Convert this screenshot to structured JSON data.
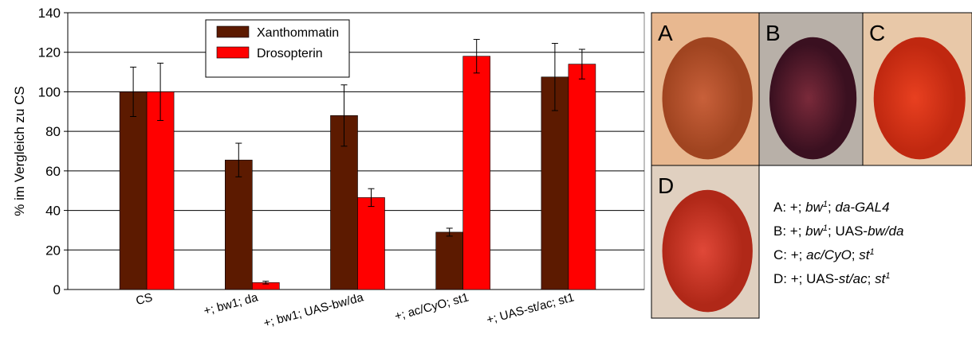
{
  "chart_data": {
    "type": "bar",
    "y_label": "% im Vergleich zu CS",
    "categories": [
      "CS",
      "+; bw1; da",
      "+; bw1; UAS-bw/da",
      "+; ac/CyO; st1",
      "+; UAS-st/ac; st1"
    ],
    "series": [
      {
        "name": "Xanthommatin",
        "color": "#5c1a00",
        "values": [
          100,
          65.5,
          88,
          29,
          107.5
        ],
        "errors": [
          12.5,
          8.5,
          15.5,
          2,
          17
        ]
      },
      {
        "name": "Drosopterin",
        "color": "#ff0000",
        "values": [
          100,
          3.5,
          46.5,
          118,
          114
        ],
        "errors": [
          14.5,
          0.7,
          4.5,
          8.5,
          7.5
        ]
      }
    ],
    "ylim": [
      0,
      140
    ],
    "yticks": [
      0,
      20,
      40,
      60,
      80,
      100,
      120,
      140
    ],
    "grid": true
  },
  "panels": [
    {
      "label": "A",
      "tone": [
        "#c8603a",
        "#a04420",
        "#e8b890"
      ],
      "caption": [
        {
          "text": "A: +; ",
          "style": "normal"
        },
        {
          "text": "bw",
          "style": "italic"
        },
        {
          "text": "1",
          "style": "sup"
        },
        {
          "text": "; ",
          "style": "normal"
        },
        {
          "text": "da-GAL4",
          "style": "italic"
        }
      ]
    },
    {
      "label": "B",
      "tone": [
        "#7a2a3a",
        "#3a1020",
        "#b8b0a8"
      ],
      "caption": [
        {
          "text": "B: +; ",
          "style": "normal"
        },
        {
          "text": "bw",
          "style": "italic"
        },
        {
          "text": "1",
          "style": "sup"
        },
        {
          "text": "; UAS-",
          "style": "normal"
        },
        {
          "text": "bw/da",
          "style": "italic"
        }
      ]
    },
    {
      "label": "C",
      "tone": [
        "#e84020",
        "#c02810",
        "#e8c8a8"
      ],
      "caption": [
        {
          "text": "C: +; ",
          "style": "normal"
        },
        {
          "text": "ac/CyO",
          "style": "italic"
        },
        {
          "text": "; ",
          "style": "normal"
        },
        {
          "text": "st",
          "style": "italic"
        },
        {
          "text": "1",
          "style": "sup"
        }
      ]
    },
    {
      "label": "D",
      "tone": [
        "#e04838",
        "#b02818",
        "#e0d0c0"
      ],
      "caption": [
        {
          "text": "D: +; UAS-",
          "style": "normal"
        },
        {
          "text": "st/ac",
          "style": "italic"
        },
        {
          "text": "; ",
          "style": "normal"
        },
        {
          "text": "st",
          "style": "italic"
        },
        {
          "text": "1",
          "style": "sup"
        }
      ]
    }
  ]
}
